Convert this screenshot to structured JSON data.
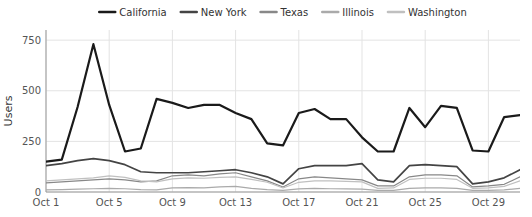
{
  "chart_data": {
    "type": "line",
    "ylabel": "Users",
    "x": [
      1,
      2,
      3,
      4,
      5,
      6,
      7,
      8,
      9,
      10,
      11,
      12,
      13,
      14,
      15,
      16,
      17,
      18,
      19,
      20,
      21,
      22,
      23,
      24,
      25,
      26,
      27,
      28,
      29,
      30,
      31
    ],
    "series": [
      {
        "name": "California",
        "color": "#1a1a1a",
        "values": [
          150,
          160,
          420,
          730,
          430,
          200,
          215,
          460,
          440,
          415,
          430,
          430,
          390,
          360,
          240,
          230,
          390,
          410,
          360,
          360,
          270,
          200,
          200,
          415,
          320,
          425,
          415,
          205,
          200,
          370,
          380
        ]
      },
      {
        "name": "New York",
        "color": "#444444",
        "values": [
          130,
          140,
          155,
          165,
          155,
          135,
          100,
          95,
          95,
          95,
          100,
          105,
          110,
          95,
          75,
          40,
          115,
          130,
          130,
          130,
          140,
          60,
          50,
          130,
          135,
          130,
          125,
          40,
          50,
          70,
          110
        ]
      },
      {
        "name": "Texas",
        "color": "#888888",
        "values": [
          45,
          50,
          55,
          60,
          65,
          60,
          50,
          55,
          80,
          85,
          80,
          90,
          95,
          75,
          55,
          25,
          65,
          75,
          70,
          65,
          60,
          30,
          30,
          75,
          85,
          85,
          80,
          25,
          30,
          38,
          75
        ]
      },
      {
        "name": "Illinois",
        "color": "#aaaaaa",
        "values": [
          10,
          12,
          14,
          16,
          18,
          16,
          12,
          10,
          20,
          22,
          20,
          25,
          28,
          18,
          12,
          8,
          15,
          18,
          16,
          15,
          14,
          8,
          8,
          18,
          20,
          20,
          18,
          8,
          8,
          10,
          18
        ]
      },
      {
        "name": "Washington",
        "color": "#c0c0c0",
        "values": [
          55,
          60,
          65,
          70,
          80,
          72,
          55,
          50,
          65,
          70,
          68,
          72,
          75,
          62,
          48,
          20,
          48,
          55,
          55,
          52,
          50,
          18,
          20,
          62,
          68,
          68,
          62,
          18,
          20,
          28,
          55
        ]
      }
    ],
    "xlim": [
      1,
      31
    ],
    "xticks": [
      {
        "value": 1,
        "label": "Oct 1"
      },
      {
        "value": 5,
        "label": "Oct 5"
      },
      {
        "value": 9,
        "label": "Oct 9"
      },
      {
        "value": 13,
        "label": "Oct 13"
      },
      {
        "value": 17,
        "label": "Oct 17"
      },
      {
        "value": 21,
        "label": "Oct 21"
      },
      {
        "value": 25,
        "label": "Oct 25"
      },
      {
        "value": 29,
        "label": "Oct 29"
      }
    ],
    "ylim": [
      0,
      800
    ],
    "yticks": [
      0,
      250,
      500,
      750
    ],
    "grid": true,
    "legend": "top"
  }
}
